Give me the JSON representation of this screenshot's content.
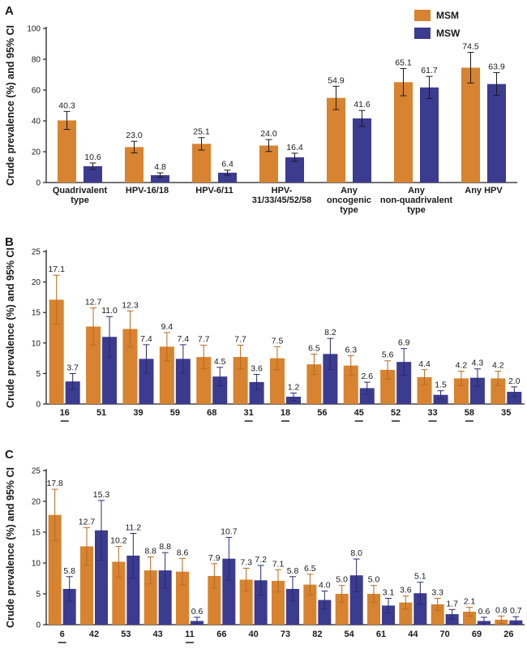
{
  "chart_data": [
    {
      "panel": "A",
      "type": "bar",
      "ylabel": "Crude prevalence (%) and 95% CI",
      "ylim": [
        0,
        100
      ],
      "yticks": [
        0,
        20,
        40,
        60,
        80,
        100
      ],
      "categories": [
        "Quadrivalent type",
        "HPV-16/18",
        "HPV-6/11",
        "HPV-31/33/45/52/58",
        "Any oncogenic type",
        "Any non-quadrivalent type",
        "Any HPV"
      ],
      "category_lines": [
        [
          "Quadrivalent",
          "type"
        ],
        [
          "HPV-16/18"
        ],
        [
          "HPV-6/11"
        ],
        [
          "HPV-",
          "31/33/45/52/58"
        ],
        [
          "Any",
          "oncogenic",
          "type"
        ],
        [
          "Any",
          "non-quadrivalent",
          "type"
        ],
        [
          "Any HPV"
        ]
      ],
      "underlined": [],
      "series": [
        {
          "name": "MSM",
          "color": "#D7832F",
          "values": [
            40.3,
            23.0,
            25.1,
            24.0,
            54.9,
            65.1,
            74.5
          ],
          "labels": [
            "40.3",
            "23.0",
            "25.1",
            "24.0",
            "54.9",
            "65.1",
            "74.5"
          ]
        },
        {
          "name": "MSW",
          "color": "#3B3B8F",
          "values": [
            10.6,
            4.8,
            6.4,
            16.4,
            41.6,
            61.7,
            63.9
          ],
          "labels": [
            "10.6",
            "4.8",
            "6.4",
            "16.4",
            "41.6",
            "61.7",
            "63.9"
          ]
        }
      ],
      "legend": {
        "position": "top-right",
        "entries": [
          "MSM",
          "MSW"
        ]
      }
    },
    {
      "panel": "B",
      "type": "bar",
      "ylabel": "Crude prevalence (%) and 95% CI",
      "ylim": [
        0,
        25
      ],
      "yticks": [
        0,
        5,
        10,
        15,
        20,
        25
      ],
      "categories": [
        "16",
        "51",
        "39",
        "59",
        "68",
        "31",
        "18",
        "56",
        "45",
        "52",
        "33",
        "58",
        "35"
      ],
      "underlined": [
        "16",
        "31",
        "18",
        "45",
        "52",
        "33",
        "58"
      ],
      "series": [
        {
          "name": "MSM",
          "color": "#D7832F",
          "values": [
            17.1,
            12.7,
            12.3,
            9.4,
            7.7,
            7.7,
            7.5,
            6.5,
            6.3,
            5.6,
            4.4,
            4.2,
            4.2
          ],
          "labels": [
            "17.1",
            "12.7",
            "12.3",
            "9.4",
            "7.7",
            "7.7",
            "7.5",
            "6.5",
            "6.3",
            "5.6",
            "4.4",
            "4.2",
            "4.2"
          ]
        },
        {
          "name": "MSW",
          "color": "#3B3B8F",
          "values": [
            3.7,
            11.0,
            7.4,
            7.4,
            4.5,
            3.6,
            1.2,
            8.2,
            2.6,
            6.9,
            1.5,
            4.3,
            2.0
          ],
          "labels": [
            "3.7",
            "11.0",
            "7.4",
            "7.4",
            "4.5",
            "3.6",
            "1.2",
            "8.2",
            "2.6",
            "6.9",
            "1.5",
            "4.3",
            "2.0"
          ]
        }
      ]
    },
    {
      "panel": "C",
      "type": "bar",
      "ylabel": "Crude prevalence (%) and 95% CI",
      "ylim": [
        0,
        25
      ],
      "yticks": [
        0,
        5,
        10,
        15,
        20,
        25
      ],
      "categories": [
        "6",
        "42",
        "53",
        "43",
        "11",
        "66",
        "40",
        "73",
        "82",
        "54",
        "61",
        "44",
        "70",
        "69",
        "26"
      ],
      "underlined": [
        "6",
        "11"
      ],
      "series": [
        {
          "name": "MSM",
          "color": "#D7832F",
          "values": [
            17.8,
            12.7,
            10.2,
            8.8,
            8.6,
            7.9,
            7.3,
            7.1,
            6.5,
            5.0,
            5.0,
            3.6,
            3.3,
            2.1,
            0.8
          ],
          "labels": [
            "17.8",
            "12.7",
            "10.2",
            "8.8",
            "8.6",
            "7.9",
            "7.3",
            "7.1",
            "6.5",
            "5.0",
            "5.0",
            "3.6",
            "3.3",
            "2.1",
            "0.8"
          ]
        },
        {
          "name": "MSW",
          "color": "#3B3B8F",
          "values": [
            5.8,
            15.3,
            11.2,
            8.8,
            0.6,
            10.7,
            7.2,
            5.8,
            4.0,
            8.0,
            3.1,
            5.1,
            1.7,
            0.6,
            0.7
          ],
          "labels": [
            "5.8",
            "15.3",
            "11.2",
            "8.8",
            "0.6",
            "10.7",
            "7.2",
            "5.8",
            "4.0",
            "8.0",
            "3.1",
            "5.1",
            "1.7",
            "0.6",
            "0.7"
          ]
        }
      ]
    }
  ]
}
